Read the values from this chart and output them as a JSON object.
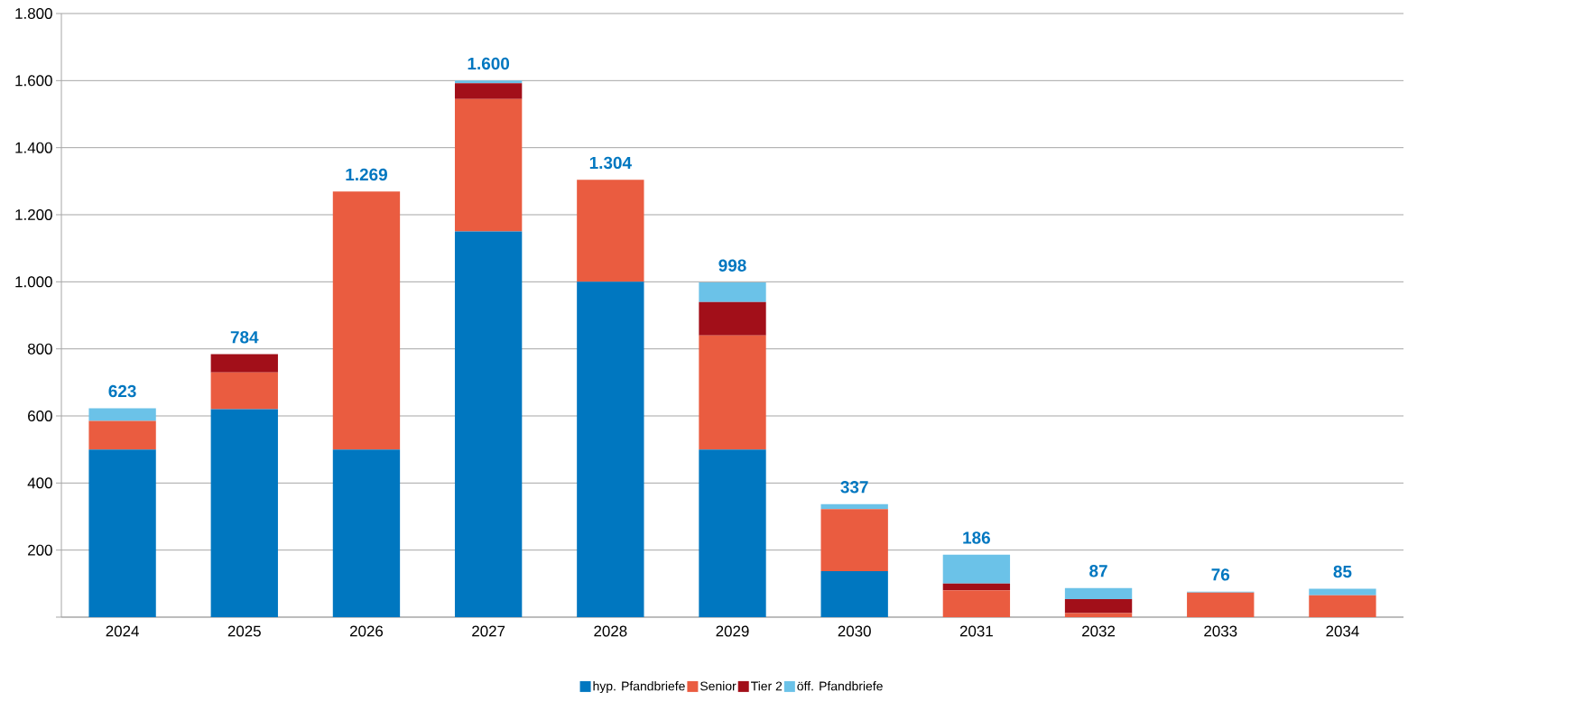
{
  "chart_data": {
    "type": "bar",
    "stacked": true,
    "categories": [
      "2024",
      "2025",
      "2026",
      "2027",
      "2028",
      "2029",
      "2030",
      "2031",
      "2032",
      "2033",
      "2034"
    ],
    "series": [
      {
        "name": "hyp. Pfandbriefe",
        "color": "#0077c0",
        "values": [
          500,
          620,
          500,
          1150,
          1000,
          500,
          137,
          0,
          0,
          0,
          0
        ]
      },
      {
        "name": "Senior",
        "color": "#ea5c40",
        "values": [
          85,
          110,
          769,
          395,
          304,
          340,
          185,
          80,
          12,
          73,
          65
        ]
      },
      {
        "name": "Tier 2",
        "color": "#a20f19",
        "values": [
          0,
          54,
          0,
          47,
          0,
          100,
          0,
          20,
          42,
          0,
          0
        ]
      },
      {
        "name": "öff. Pfandbriefe",
        "color": "#6bc2e8",
        "values": [
          38,
          0,
          0,
          8,
          0,
          58,
          15,
          86,
          33,
          3,
          20
        ]
      }
    ],
    "totals": [
      "623",
      "784",
      "1.269",
      "1.600",
      "1.304",
      "998",
      "337",
      "186",
      "87",
      "76",
      "85"
    ],
    "ylim": [
      0,
      1800
    ],
    "yticks": [
      {
        "value": 0,
        "label": null
      },
      {
        "value": 200,
        "label": "200"
      },
      {
        "value": 400,
        "label": "400"
      },
      {
        "value": 600,
        "label": "600"
      },
      {
        "value": 800,
        "label": "800"
      },
      {
        "value": 1000,
        "label": "1.000"
      },
      {
        "value": 1200,
        "label": "1.200"
      },
      {
        "value": 1400,
        "label": "1.400"
      },
      {
        "value": 1600,
        "label": "1.600"
      },
      {
        "value": 1800,
        "label": "1.800"
      }
    ],
    "grid": "y",
    "legend": "bottom"
  }
}
